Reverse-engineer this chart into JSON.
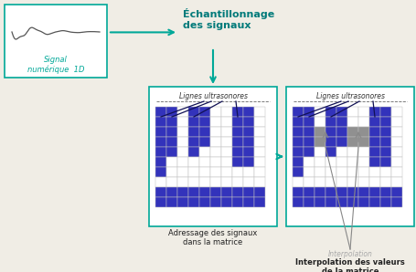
{
  "bg_color": "#f0ede5",
  "teal": "#00a898",
  "teal_text": "#007a7a",
  "blue": "#3333bb",
  "gray_interp": "#909090",
  "grid_line": "#c0c0c0",
  "signal_text": "#00a898",
  "dark_text": "#222222",
  "line_dark": "#222266",
  "interp_gray_text": "#999999",
  "signal_label": "Signal\nnumérique  1D",
  "echant_label": "Échantillonnage\ndes signaux",
  "lignes_label": "Lignes ultrasonores",
  "adressage_label": "Adressage des signaux\ndans la matrice",
  "interp_italic": "Interpolation",
  "interp_bold": "Interpolation des valeurs\nde la matrice",
  "fig_w": 4.55,
  "fig_h": 2.98,
  "dpi": 100
}
